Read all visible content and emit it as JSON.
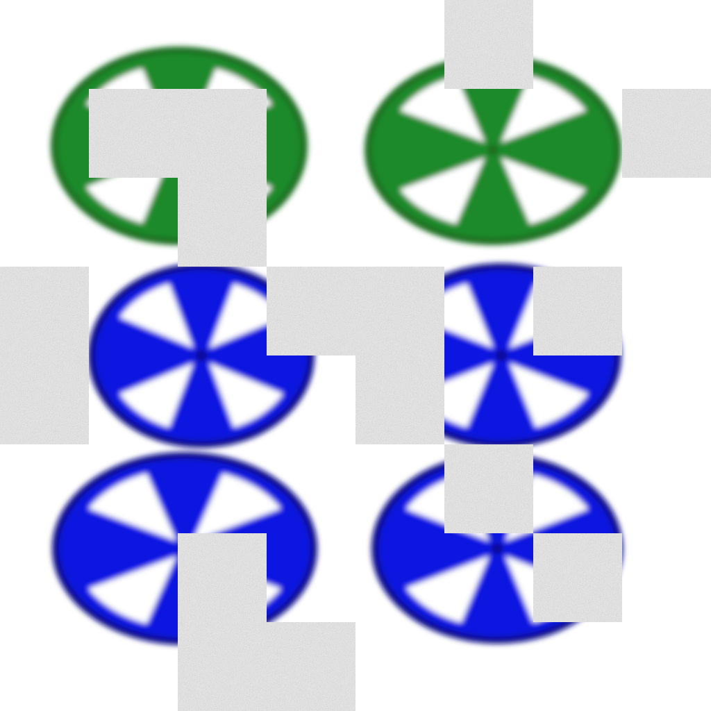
{
  "image": {
    "background": "#ffffff",
    "wheels": [
      {
        "id": "wheel-top-left",
        "color": "#1f8a2a",
        "rim": "#1a6e22"
      },
      {
        "id": "wheel-top-right",
        "color": "#1f8a2a",
        "rim": "#1a6e22"
      },
      {
        "id": "wheel-middle-left",
        "color": "#0a14e0",
        "rim": "#0a0f8a"
      },
      {
        "id": "wheel-middle-right",
        "color": "#0a14e0",
        "rim": "#0a0f8a"
      },
      {
        "id": "wheel-bottom-left",
        "color": "#0a14e0",
        "rim": "#0a0f8a"
      },
      {
        "id": "wheel-bottom-right",
        "color": "#0a14e0",
        "rim": "#0a0f8a"
      }
    ],
    "occlusion": {
      "pattern": "gray-static-noise",
      "color": "#bdbdbd"
    }
  }
}
